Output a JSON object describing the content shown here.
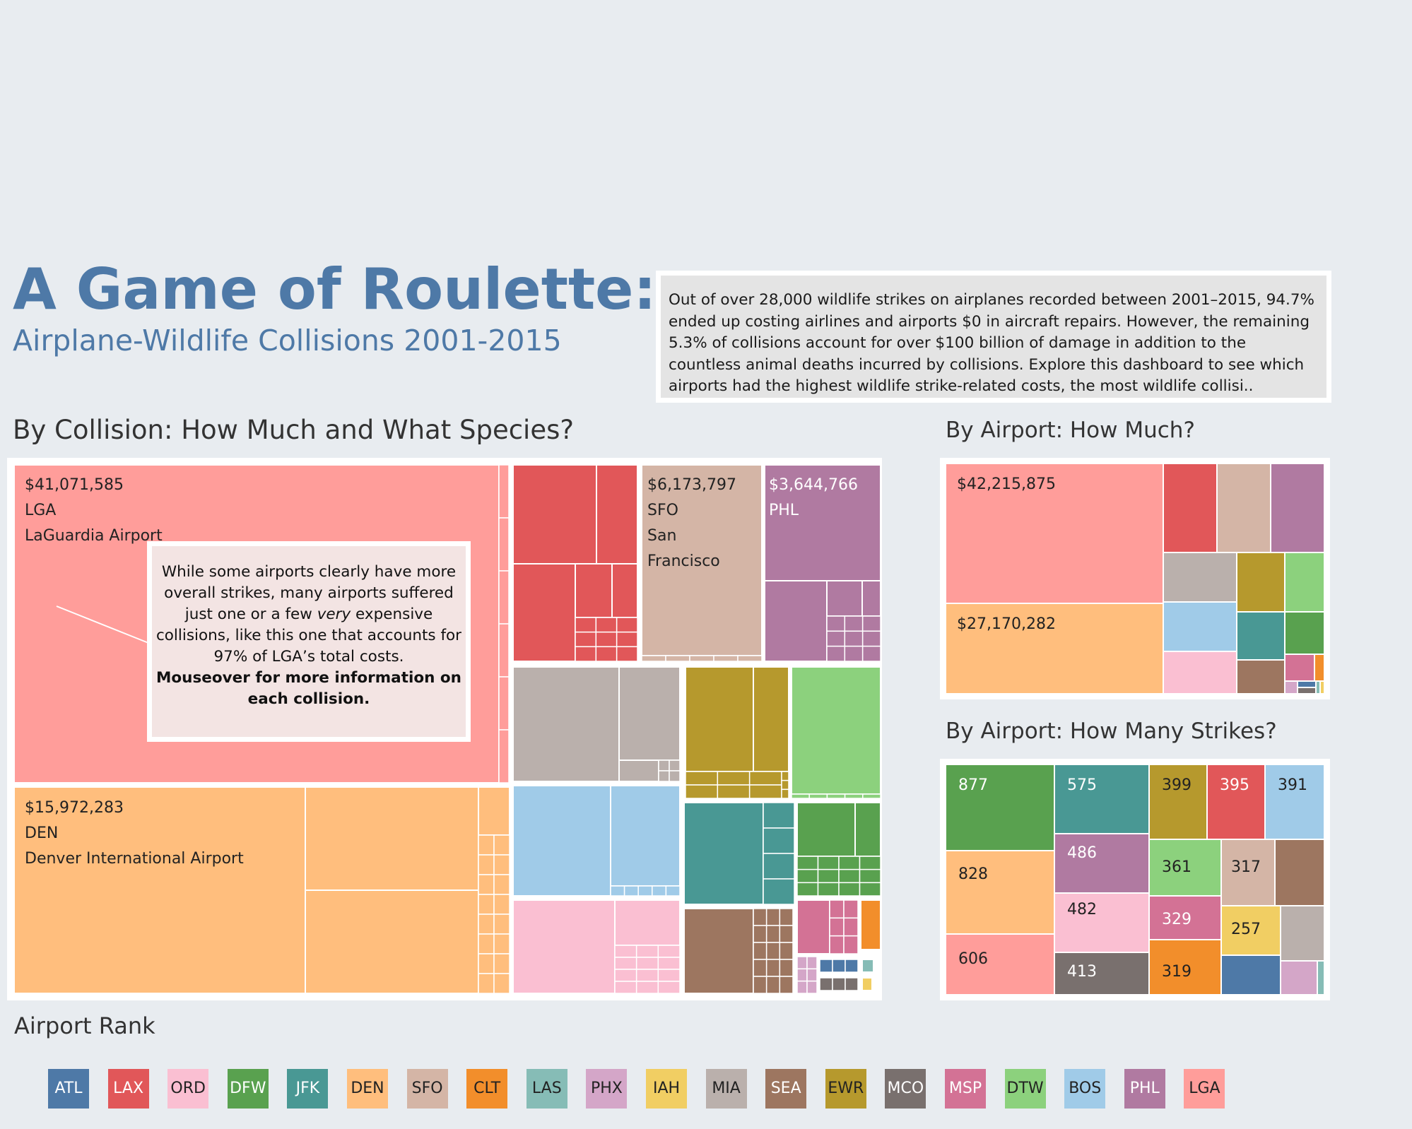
{
  "header": {
    "title": "A Game of Roulette:",
    "subtitle": "Airplane-Wildlife Collisions 2001-2015"
  },
  "intro": {
    "text": "Out of over 28,000 wildlife strikes on airplanes recorded between 2001–2015, 94.7% ended up costing airlines and airports $0 in aircraft repairs. However, the remaining 5.3% of collisions account for over $100 billion of damage in addition to the countless animal deaths incurred by collisions. Explore this dashboard to see which airports had the highest wildlife strike-related costs, the most wildlife collisi.."
  },
  "sections": {
    "collision": "By Collision: How Much and What Species?",
    "cost": "By Airport: How Much?",
    "strikes": "By Airport: How Many Strikes?",
    "rank": "Airport Rank"
  },
  "callout": {
    "line1": "While some airports clearly have more overall strikes, many airports suffered just one or a few ",
    "emph": "very",
    "line2": " expensive collisions, like this one that accounts for 97% of LGA’s total costs.",
    "bold": "Mouseover for more information on each collision."
  },
  "colors": {
    "ATL": "#4e79a7",
    "LAX": "#e15759",
    "ORD": "#fabfd2",
    "DFW": "#59a14f",
    "JFK": "#499894",
    "DEN": "#ffbe7d",
    "SFO": "#d4b5a6",
    "CLT": "#f28e2b",
    "LAS": "#86bcb6",
    "PHX": "#d4a6c8",
    "IAH": "#f1ce63",
    "MIA": "#bab0ac",
    "SEA": "#9d7660",
    "EWR": "#b6992d",
    "MCO": "#79706e",
    "MSP": "#d37295",
    "DTW": "#8cd17d",
    "BOS": "#a0cbe8",
    "PHL": "#b07aa1",
    "LGA": "#ff9d9a"
  },
  "legend": [
    "ATL",
    "LAX",
    "ORD",
    "DFW",
    "JFK",
    "DEN",
    "SFO",
    "CLT",
    "LAS",
    "PHX",
    "IAH",
    "MIA",
    "SEA",
    "EWR",
    "MCO",
    "MSP",
    "DTW",
    "BOS",
    "PHL",
    "LGA"
  ],
  "chart_data": [
    {
      "type": "treemap",
      "name": "By Collision: How Much and What Species?",
      "labeled_cells": [
        {
          "airport": "LGA",
          "value": 41071585,
          "value_label": "$41,071,585",
          "code": "LGA",
          "airport_name": "LaGuardia Airport"
        },
        {
          "airport": "DEN",
          "value": 15972283,
          "value_label": "$15,972,283",
          "code": "DEN",
          "airport_name": "Denver International Airport"
        },
        {
          "airport": "SFO",
          "value": 6173797,
          "value_label": "$6,173,797",
          "code": "SFO",
          "airport_name": "San Francisco"
        },
        {
          "airport": "PHL",
          "value": 3644766,
          "value_label": "$3,644,766",
          "code": "PHL"
        }
      ]
    },
    {
      "type": "treemap",
      "name": "By Airport: How Much?",
      "labeled_cells": [
        {
          "airport": "LGA",
          "value": 42215875,
          "value_label": "$42,215,875"
        },
        {
          "airport": "DEN",
          "value": 27170282,
          "value_label": "$27,170,282"
        }
      ]
    },
    {
      "type": "treemap",
      "name": "By Airport: How Many Strikes?",
      "cells": [
        {
          "airport": "DFW",
          "value": 877
        },
        {
          "airport": "DEN",
          "value": 828
        },
        {
          "airport": "LGA",
          "value": 606
        },
        {
          "airport": "JFK",
          "value": 575
        },
        {
          "airport": "PHL",
          "value": 486
        },
        {
          "airport": "ORD",
          "value": 482
        },
        {
          "airport": "MCO",
          "value": 413
        },
        {
          "airport": "EWR",
          "value": 399
        },
        {
          "airport": "LAX",
          "value": 395
        },
        {
          "airport": "BOS",
          "value": 391
        },
        {
          "airport": "DTW",
          "value": 361
        },
        {
          "airport": "MSP",
          "value": 329
        },
        {
          "airport": "CLT",
          "value": 319
        },
        {
          "airport": "SFO",
          "value": 317
        },
        {
          "airport": "IAH",
          "value": 257
        },
        {
          "airport": "SEA"
        },
        {
          "airport": "MIA"
        },
        {
          "airport": "ATL"
        },
        {
          "airport": "PHX"
        },
        {
          "airport": "LAS"
        }
      ]
    }
  ]
}
